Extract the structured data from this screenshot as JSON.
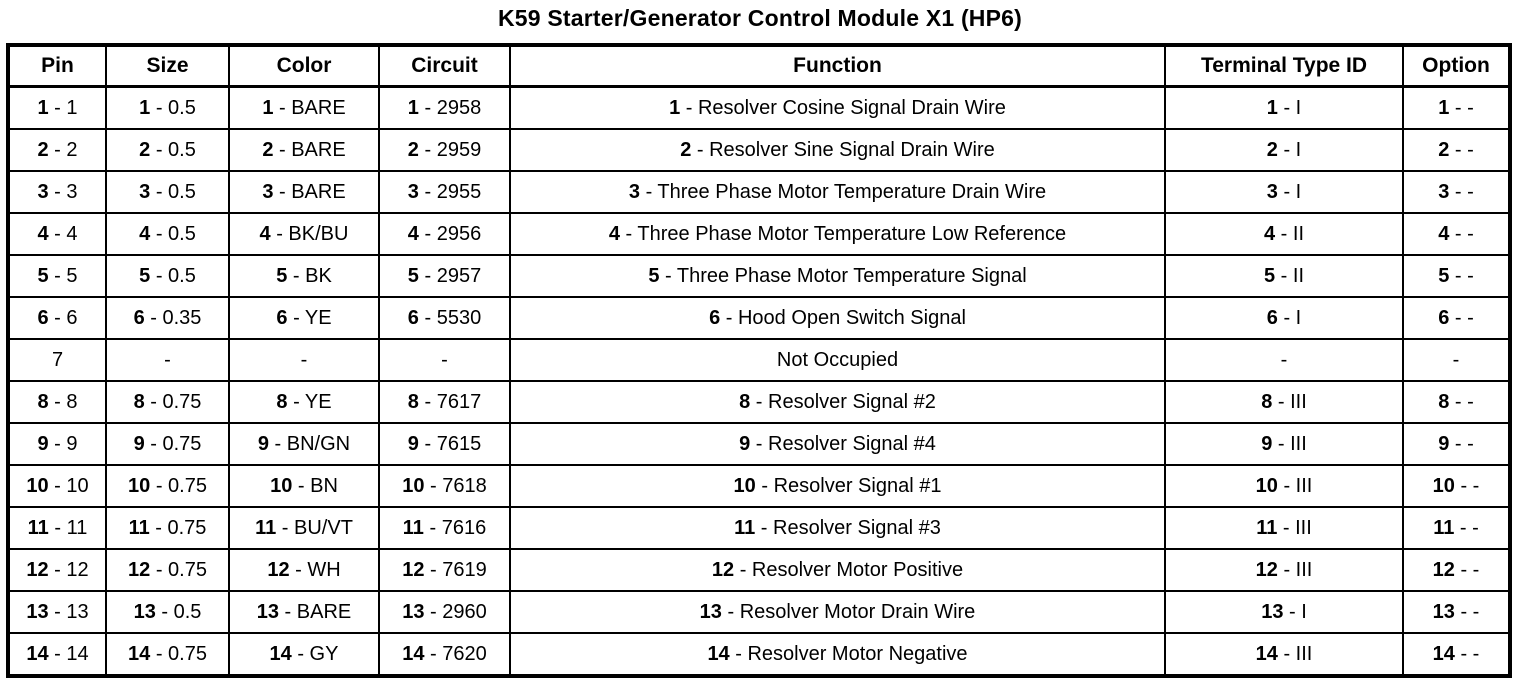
{
  "title": "K59 Starter/Generator Control Module X1 (HP6)",
  "table": {
    "columns": [
      "Pin",
      "Size",
      "Color",
      "Circuit",
      "Function",
      "Terminal Type ID",
      "Option"
    ],
    "rows": [
      {
        "pin": {
          "b": "1",
          "t": " - 1"
        },
        "size": {
          "b": "1",
          "t": " - 0.5"
        },
        "color": {
          "b": "1",
          "t": " - BARE"
        },
        "circuit": {
          "b": "1",
          "t": " - 2958"
        },
        "function": {
          "b": "1",
          "t": " - Resolver Cosine Signal Drain Wire"
        },
        "terminal": {
          "b": "1",
          "t": " - I"
        },
        "option": {
          "b": "1",
          "t": " - -"
        }
      },
      {
        "pin": {
          "b": "2",
          "t": " - 2"
        },
        "size": {
          "b": "2",
          "t": " - 0.5"
        },
        "color": {
          "b": "2",
          "t": " - BARE"
        },
        "circuit": {
          "b": "2",
          "t": " - 2959"
        },
        "function": {
          "b": "2",
          "t": " - Resolver Sine Signal Drain Wire"
        },
        "terminal": {
          "b": "2",
          "t": " - I"
        },
        "option": {
          "b": "2",
          "t": " - -"
        }
      },
      {
        "pin": {
          "b": "3",
          "t": " - 3"
        },
        "size": {
          "b": "3",
          "t": " - 0.5"
        },
        "color": {
          "b": "3",
          "t": " - BARE"
        },
        "circuit": {
          "b": "3",
          "t": " - 2955"
        },
        "function": {
          "b": "3",
          "t": " - Three Phase Motor Temperature Drain Wire"
        },
        "terminal": {
          "b": "3",
          "t": " - I"
        },
        "option": {
          "b": "3",
          "t": " - -"
        }
      },
      {
        "pin": {
          "b": "4",
          "t": " - 4"
        },
        "size": {
          "b": "4",
          "t": " - 0.5"
        },
        "color": {
          "b": "4",
          "t": " - BK/BU"
        },
        "circuit": {
          "b": "4",
          "t": " - 2956"
        },
        "function": {
          "b": "4",
          "t": " - Three Phase Motor Temperature Low Reference"
        },
        "terminal": {
          "b": "4",
          "t": " - II"
        },
        "option": {
          "b": "4",
          "t": " - -"
        }
      },
      {
        "pin": {
          "b": "5",
          "t": " - 5"
        },
        "size": {
          "b": "5",
          "t": " - 0.5"
        },
        "color": {
          "b": "5",
          "t": " - BK"
        },
        "circuit": {
          "b": "5",
          "t": " - 2957"
        },
        "function": {
          "b": "5",
          "t": " - Three Phase Motor Temperature Signal"
        },
        "terminal": {
          "b": "5",
          "t": " - II"
        },
        "option": {
          "b": "5",
          "t": " - -"
        }
      },
      {
        "pin": {
          "b": "6",
          "t": " - 6"
        },
        "size": {
          "b": "6",
          "t": " - 0.35"
        },
        "color": {
          "b": "6",
          "t": " - YE"
        },
        "circuit": {
          "b": "6",
          "t": " - 5530"
        },
        "function": {
          "b": "6",
          "t": " - Hood Open Switch Signal"
        },
        "terminal": {
          "b": "6",
          "t": " - I"
        },
        "option": {
          "b": "6",
          "t": " - -"
        }
      },
      {
        "pin": {
          "b": "",
          "t": "7"
        },
        "size": {
          "b": "",
          "t": "-"
        },
        "color": {
          "b": "",
          "t": "-"
        },
        "circuit": {
          "b": "",
          "t": "-"
        },
        "function": {
          "b": "",
          "t": "Not Occupied"
        },
        "terminal": {
          "b": "",
          "t": "-"
        },
        "option": {
          "b": "",
          "t": "-"
        }
      },
      {
        "pin": {
          "b": "8",
          "t": " - 8"
        },
        "size": {
          "b": "8",
          "t": " - 0.75"
        },
        "color": {
          "b": "8",
          "t": " - YE"
        },
        "circuit": {
          "b": "8",
          "t": " - 7617"
        },
        "function": {
          "b": "8",
          "t": " - Resolver Signal #2"
        },
        "terminal": {
          "b": "8",
          "t": " - III"
        },
        "option": {
          "b": "8",
          "t": " - -"
        }
      },
      {
        "pin": {
          "b": "9",
          "t": " - 9"
        },
        "size": {
          "b": "9",
          "t": " - 0.75"
        },
        "color": {
          "b": "9",
          "t": " - BN/GN"
        },
        "circuit": {
          "b": "9",
          "t": " - 7615"
        },
        "function": {
          "b": "9",
          "t": " - Resolver Signal #4"
        },
        "terminal": {
          "b": "9",
          "t": " - III"
        },
        "option": {
          "b": "9",
          "t": " - -"
        }
      },
      {
        "pin": {
          "b": "10",
          "t": " - 10"
        },
        "size": {
          "b": "10",
          "t": " - 0.75"
        },
        "color": {
          "b": "10",
          "t": " - BN"
        },
        "circuit": {
          "b": "10",
          "t": " - 7618"
        },
        "function": {
          "b": "10",
          "t": " - Resolver Signal #1"
        },
        "terminal": {
          "b": "10",
          "t": " - III"
        },
        "option": {
          "b": "10",
          "t": " - -"
        }
      },
      {
        "pin": {
          "b": "11",
          "t": " - 11"
        },
        "size": {
          "b": "11",
          "t": " - 0.75"
        },
        "color": {
          "b": "11",
          "t": " - BU/VT"
        },
        "circuit": {
          "b": "11",
          "t": " - 7616"
        },
        "function": {
          "b": "11",
          "t": " - Resolver Signal #3"
        },
        "terminal": {
          "b": "11",
          "t": " - III"
        },
        "option": {
          "b": "11",
          "t": " - -"
        }
      },
      {
        "pin": {
          "b": "12",
          "t": " - 12"
        },
        "size": {
          "b": "12",
          "t": " - 0.75"
        },
        "color": {
          "b": "12",
          "t": " - WH"
        },
        "circuit": {
          "b": "12",
          "t": " - 7619"
        },
        "function": {
          "b": "12",
          "t": " - Resolver Motor Positive"
        },
        "terminal": {
          "b": "12",
          "t": " - III"
        },
        "option": {
          "b": "12",
          "t": " - -"
        }
      },
      {
        "pin": {
          "b": "13",
          "t": " - 13"
        },
        "size": {
          "b": "13",
          "t": " - 0.5"
        },
        "color": {
          "b": "13",
          "t": " - BARE"
        },
        "circuit": {
          "b": "13",
          "t": " - 2960"
        },
        "function": {
          "b": "13",
          "t": " - Resolver Motor Drain Wire"
        },
        "terminal": {
          "b": "13",
          "t": " - I"
        },
        "option": {
          "b": "13",
          "t": " - -"
        }
      },
      {
        "pin": {
          "b": "14",
          "t": " - 14"
        },
        "size": {
          "b": "14",
          "t": " - 0.75"
        },
        "color": {
          "b": "14",
          "t": " - GY"
        },
        "circuit": {
          "b": "14",
          "t": " - 7620"
        },
        "function": {
          "b": "14",
          "t": " - Resolver Motor Negative"
        },
        "terminal": {
          "b": "14",
          "t": " - III"
        },
        "option": {
          "b": "14",
          "t": " - -"
        }
      }
    ]
  }
}
